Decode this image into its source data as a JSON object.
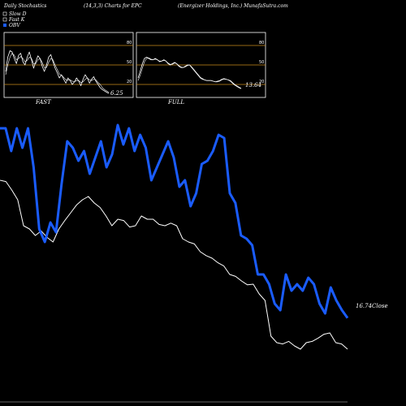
{
  "header": {
    "left": "Daily Stochastics",
    "center": "(14,3,3) Charts for EPC",
    "right": "(Energizer Holdings, Inc.) MunafaSutra.com"
  },
  "legend": {
    "items": [
      {
        "label": "Slow D",
        "color": "#ffffff"
      },
      {
        "label": "Fast K",
        "color": "#ffffff"
      },
      {
        "label": "OBV",
        "color": "#1a5cff"
      }
    ]
  },
  "colors": {
    "background": "#000000",
    "obv": "#1a5cff",
    "price": "#ffffff",
    "level_line": "#c88a1a"
  },
  "chart_data": [
    {
      "type": "line",
      "title": "FAST",
      "ylim": [
        0,
        100
      ],
      "y_ticks": [
        20,
        50,
        80
      ],
      "last_value_label": "6.25",
      "series": [
        {
          "values": [
            40,
            62,
            72,
            70,
            60,
            52,
            65,
            68,
            55,
            50,
            62,
            70,
            58,
            45,
            55,
            64,
            60,
            48,
            40,
            50,
            62,
            66,
            55,
            45,
            38,
            30,
            35,
            28,
            22,
            30,
            26,
            20,
            24,
            30,
            25,
            18,
            28,
            35,
            30,
            22,
            28,
            32,
            25,
            20,
            15,
            12,
            10,
            8,
            6.25
          ]
        },
        {
          "values": [
            35,
            50,
            62,
            68,
            65,
            58,
            60,
            63,
            60,
            55,
            57,
            62,
            60,
            52,
            52,
            58,
            60,
            54,
            46,
            46,
            54,
            60,
            58,
            50,
            43,
            36,
            34,
            31,
            27,
            27,
            27,
            25,
            24,
            26,
            26,
            23,
            24,
            28,
            30,
            27,
            26,
            28,
            27,
            23,
            20,
            15,
            12,
            10,
            8
          ]
        }
      ]
    },
    {
      "type": "line",
      "title": "FULL",
      "ylim": [
        0,
        100
      ],
      "y_ticks": [
        20,
        50,
        80
      ],
      "last_value_label": "13.64",
      "series": [
        {
          "values": [
            30,
            40,
            52,
            60,
            62,
            60,
            58,
            58,
            60,
            58,
            55,
            56,
            58,
            56,
            52,
            50,
            52,
            54,
            52,
            48,
            46,
            46,
            48,
            50,
            50,
            46,
            42,
            38,
            34,
            30,
            28,
            27,
            26,
            26,
            26,
            25,
            24,
            25,
            26,
            28,
            29,
            28,
            27,
            25,
            22,
            19,
            17,
            15,
            13.64
          ]
        },
        {
          "values": [
            26,
            34,
            45,
            55,
            60,
            61,
            59,
            58,
            59,
            58,
            56,
            56,
            57,
            56,
            53,
            51,
            51,
            53,
            52,
            49,
            47,
            46,
            47,
            49,
            50,
            47,
            43,
            39,
            35,
            31,
            29,
            27,
            26,
            26,
            26,
            25,
            24,
            24,
            25,
            27,
            28,
            28,
            27,
            26,
            23,
            20,
            18,
            16,
            14
          ]
        }
      ]
    },
    {
      "type": "line",
      "last_close_label": "16.74",
      "close_suffix": "Close",
      "series": [
        {
          "name": "OBV",
          "values": [
            440,
            440,
            405,
            440,
            410,
            440,
            380,
            285,
            265,
            295,
            280,
            355,
            420,
            410,
            390,
            405,
            370,
            395,
            420,
            380,
            400,
            445,
            415,
            440,
            405,
            430,
            410,
            360,
            380,
            400,
            420,
            395,
            350,
            360,
            320,
            340,
            385,
            390,
            405,
            430,
            425,
            340,
            325,
            275,
            270,
            260,
            215,
            215,
            200,
            170,
            160,
            215,
            190,
            200,
            190,
            210,
            200,
            170,
            155,
            195,
            175,
            160,
            148
          ]
        },
        {
          "name": "Close",
          "values": [
            360,
            358,
            345,
            330,
            290,
            285,
            275,
            282,
            272,
            265,
            285,
            298,
            310,
            322,
            330,
            335,
            325,
            318,
            305,
            290,
            300,
            298,
            288,
            290,
            305,
            300,
            300,
            292,
            290,
            294,
            290,
            270,
            265,
            262,
            250,
            244,
            240,
            233,
            228,
            215,
            212,
            205,
            199,
            200,
            185,
            175,
            120,
            110,
            108,
            112,
            105,
            100,
            110,
            112,
            117,
            123,
            125,
            110,
            108,
            100
          ]
        }
      ]
    }
  ]
}
